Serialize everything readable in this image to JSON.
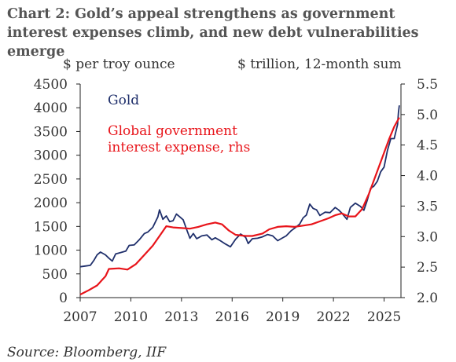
{
  "title": "Chart 2: Gold’s appeal strengthens as government interest expenses climb, and new debt vulnerabilities emerge",
  "source": "Source: Bloomberg, IIF",
  "colors": {
    "gold": "#1f2f6b",
    "interest": "#e8141a",
    "axis": "#222222",
    "text": "#333333"
  },
  "chart_data": {
    "type": "line",
    "title": "Chart 2: Gold’s appeal strengthens as government interest expenses climb, and new debt vulnerabilities emerge",
    "ylabel_left": "$ per troy ounce",
    "ylabel_right": "$ trillion, 12-month sum",
    "x_ticks": [
      "2007",
      "2010",
      "2013",
      "2016",
      "2019",
      "2022",
      "2025"
    ],
    "x_range": [
      2007,
      2026
    ],
    "y_left_ticks": [
      "0",
      "500",
      "1000",
      "1500",
      "2000",
      "2500",
      "3000",
      "3500",
      "4000",
      "4500"
    ],
    "y_left_range": [
      0,
      4500
    ],
    "y_right_ticks": [
      "2.0",
      "2.5",
      "3.0",
      "3.5",
      "4.0",
      "4.5",
      "5.0",
      "5.5"
    ],
    "y_right_range": [
      2.0,
      5.5
    ],
    "grid": false,
    "series": [
      {
        "name": "Gold",
        "axis": "left",
        "color": "#1f2f6b",
        "points": [
          [
            2007.0,
            650
          ],
          [
            2007.3,
            665
          ],
          [
            2007.6,
            680
          ],
          [
            2007.8,
            780
          ],
          [
            2008.0,
            900
          ],
          [
            2008.2,
            960
          ],
          [
            2008.5,
            900
          ],
          [
            2008.7,
            830
          ],
          [
            2008.9,
            770
          ],
          [
            2009.1,
            920
          ],
          [
            2009.4,
            950
          ],
          [
            2009.7,
            980
          ],
          [
            2009.9,
            1100
          ],
          [
            2010.2,
            1110
          ],
          [
            2010.5,
            1220
          ],
          [
            2010.8,
            1350
          ],
          [
            2011.0,
            1380
          ],
          [
            2011.3,
            1480
          ],
          [
            2011.6,
            1700
          ],
          [
            2011.7,
            1850
          ],
          [
            2011.9,
            1650
          ],
          [
            2012.1,
            1720
          ],
          [
            2012.3,
            1600
          ],
          [
            2012.5,
            1620
          ],
          [
            2012.7,
            1760
          ],
          [
            2012.9,
            1700
          ],
          [
            2013.1,
            1640
          ],
          [
            2013.3,
            1440
          ],
          [
            2013.5,
            1250
          ],
          [
            2013.7,
            1350
          ],
          [
            2013.9,
            1240
          ],
          [
            2014.2,
            1300
          ],
          [
            2014.5,
            1320
          ],
          [
            2014.8,
            1220
          ],
          [
            2015.0,
            1260
          ],
          [
            2015.3,
            1200
          ],
          [
            2015.6,
            1130
          ],
          [
            2015.9,
            1070
          ],
          [
            2016.2,
            1230
          ],
          [
            2016.5,
            1340
          ],
          [
            2016.8,
            1270
          ],
          [
            2016.95,
            1140
          ],
          [
            2017.2,
            1240
          ],
          [
            2017.5,
            1250
          ],
          [
            2017.8,
            1280
          ],
          [
            2018.1,
            1330
          ],
          [
            2018.4,
            1300
          ],
          [
            2018.7,
            1200
          ],
          [
            2018.95,
            1250
          ],
          [
            2019.2,
            1300
          ],
          [
            2019.5,
            1410
          ],
          [
            2019.8,
            1490
          ],
          [
            2020.0,
            1550
          ],
          [
            2020.2,
            1680
          ],
          [
            2020.4,
            1740
          ],
          [
            2020.6,
            1970
          ],
          [
            2020.8,
            1880
          ],
          [
            2021.0,
            1850
          ],
          [
            2021.2,
            1730
          ],
          [
            2021.5,
            1800
          ],
          [
            2021.8,
            1790
          ],
          [
            2022.1,
            1900
          ],
          [
            2022.3,
            1850
          ],
          [
            2022.5,
            1780
          ],
          [
            2022.8,
            1650
          ],
          [
            2023.0,
            1900
          ],
          [
            2023.3,
            1990
          ],
          [
            2023.6,
            1920
          ],
          [
            2023.8,
            1840
          ],
          [
            2024.0,
            2050
          ],
          [
            2024.2,
            2300
          ],
          [
            2024.4,
            2350
          ],
          [
            2024.6,
            2450
          ],
          [
            2024.8,
            2650
          ],
          [
            2025.0,
            2750
          ],
          [
            2025.2,
            3100
          ],
          [
            2025.4,
            3350
          ],
          [
            2025.6,
            3350
          ],
          [
            2025.8,
            3650
          ],
          [
            2025.85,
            3900
          ],
          [
            2025.9,
            4050
          ]
        ]
      },
      {
        "name": "Global government interest expense, rhs",
        "axis": "right",
        "color": "#e8141a",
        "points": [
          [
            2007.0,
            2.05
          ],
          [
            2007.5,
            2.12
          ],
          [
            2008.0,
            2.2
          ],
          [
            2008.5,
            2.35
          ],
          [
            2008.7,
            2.47
          ],
          [
            2009.3,
            2.48
          ],
          [
            2009.8,
            2.46
          ],
          [
            2010.3,
            2.55
          ],
          [
            2010.8,
            2.7
          ],
          [
            2011.3,
            2.85
          ],
          [
            2011.8,
            3.05
          ],
          [
            2012.1,
            3.17
          ],
          [
            2012.5,
            3.15
          ],
          [
            2013.0,
            3.14
          ],
          [
            2013.5,
            3.13
          ],
          [
            2014.0,
            3.16
          ],
          [
            2014.5,
            3.2
          ],
          [
            2015.0,
            3.23
          ],
          [
            2015.4,
            3.2
          ],
          [
            2015.8,
            3.1
          ],
          [
            2016.2,
            3.03
          ],
          [
            2016.8,
            3.01
          ],
          [
            2017.2,
            3.01
          ],
          [
            2017.8,
            3.05
          ],
          [
            2018.2,
            3.12
          ],
          [
            2018.7,
            3.16
          ],
          [
            2019.2,
            3.17
          ],
          [
            2019.7,
            3.16
          ],
          [
            2020.2,
            3.18
          ],
          [
            2020.7,
            3.2
          ],
          [
            2021.2,
            3.25
          ],
          [
            2021.7,
            3.3
          ],
          [
            2022.1,
            3.35
          ],
          [
            2022.5,
            3.38
          ],
          [
            2022.9,
            3.33
          ],
          [
            2023.3,
            3.33
          ],
          [
            2023.7,
            3.45
          ],
          [
            2024.1,
            3.7
          ],
          [
            2024.5,
            4.0
          ],
          [
            2024.9,
            4.3
          ],
          [
            2025.3,
            4.6
          ],
          [
            2025.6,
            4.8
          ],
          [
            2025.9,
            4.95
          ]
        ]
      }
    ],
    "legend": {
      "position": "top-left",
      "entries": [
        "Gold",
        "Global government interest expense, rhs"
      ]
    },
    "legend_lines": {
      "gold": [
        "Gold"
      ],
      "interest": [
        "Global government",
        "interest expense, rhs"
      ]
    }
  }
}
